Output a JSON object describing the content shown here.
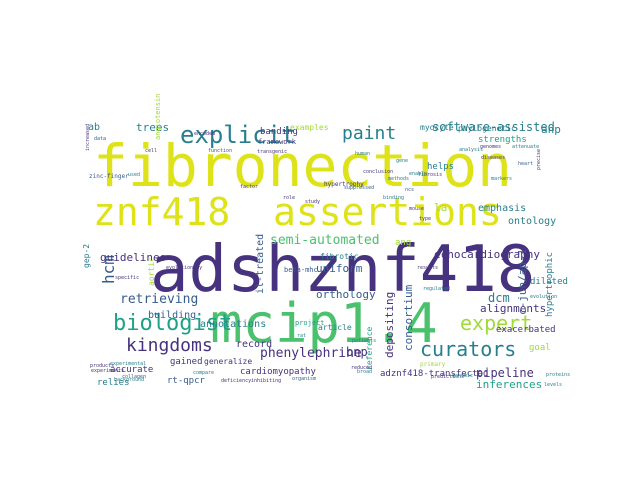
{
  "colors": {
    "background": "#ffffff",
    "purple": "#46327e",
    "darkblue": "#365c8d",
    "teal": "#277f8e",
    "green": "#1fa187",
    "lightgreen": "#4ac16d",
    "lime": "#a0da39",
    "yellow": "#dde318"
  },
  "words": [
    {
      "text": "fibronection",
      "color": "yellow"
    },
    {
      "text": "adshznf418",
      "color": "purple"
    },
    {
      "text": "mcip1.4",
      "color": "lightgreen"
    },
    {
      "text": "znf418",
      "color": "yellow"
    },
    {
      "text": "assertions",
      "color": "yellow"
    },
    {
      "text": "explicit",
      "color": "teal"
    },
    {
      "text": "paint",
      "color": "teal"
    },
    {
      "text": "biologist",
      "color": "green"
    },
    {
      "text": "kingdoms",
      "color": "purple"
    },
    {
      "text": "expert",
      "color": "lime"
    },
    {
      "text": "curators",
      "color": "teal"
    },
    {
      "text": "hcm",
      "color": "darkblue"
    },
    {
      "text": "software-assisted",
      "color": "teal"
    },
    {
      "text": "semi-automated",
      "color": "lightgreen"
    },
    {
      "text": "phenylephrine",
      "color": "purple"
    },
    {
      "text": "retrieving",
      "color": "darkblue"
    },
    {
      "text": "guidelines",
      "color": "purple"
    },
    {
      "text": "trees",
      "color": "teal"
    },
    {
      "text": "annotations",
      "color": "teal"
    },
    {
      "text": "pipeline",
      "color": "purple"
    },
    {
      "text": "inferences",
      "color": "green"
    },
    {
      "text": "bnp",
      "color": "purple"
    },
    {
      "text": "orthology",
      "color": "darkblue"
    },
    {
      "text": "depositing",
      "color": "purple"
    },
    {
      "text": "consortium",
      "color": "darkblue"
    },
    {
      "text": "c-jun/ap-1",
      "color": "darkblue"
    },
    {
      "text": "dcm",
      "color": "teal"
    },
    {
      "text": "echocardiography",
      "color": "purple"
    },
    {
      "text": "ontology",
      "color": "teal"
    },
    {
      "text": "emphasis",
      "color": "teal"
    },
    {
      "text": "alignments",
      "color": "purple"
    },
    {
      "text": "anp",
      "color": "teal"
    },
    {
      "text": "strengths",
      "color": "green"
    },
    {
      "text": "hypertrophic",
      "color": "teal"
    },
    {
      "text": "exacerbated",
      "color": "purple"
    },
    {
      "text": "dilated",
      "color": "teal"
    },
    {
      "text": "goal",
      "color": "lime"
    },
    {
      "text": "uniform",
      "color": "darkblue"
    },
    {
      "text": "beta-mhc",
      "color": "darkblue"
    },
    {
      "text": "fibrotic",
      "color": "teal"
    },
    {
      "text": "il-treated",
      "color": "darkblue"
    },
    {
      "text": "record",
      "color": "purple"
    },
    {
      "text": "building",
      "color": "darkblue"
    },
    {
      "text": "banding",
      "color": "purple"
    },
    {
      "text": "framework",
      "color": "purple"
    },
    {
      "text": "examples",
      "color": "lime"
    },
    {
      "text": "ab",
      "color": "teal"
    },
    {
      "text": "accurate",
      "color": "purple"
    },
    {
      "text": "relies",
      "color": "teal"
    },
    {
      "text": "gained",
      "color": "purple"
    },
    {
      "text": "generalize",
      "color": "purple"
    },
    {
      "text": "cardiomyopathy",
      "color": "purple"
    },
    {
      "text": "rt-qpcr",
      "color": "darkblue"
    },
    {
      "text": "adznf418-transfected",
      "color": "purple"
    },
    {
      "text": "article",
      "color": "teal"
    },
    {
      "text": "project",
      "color": "green"
    },
    {
      "text": "reference",
      "color": "green"
    },
    {
      "text": "phylogenetic",
      "color": "teal"
    },
    {
      "text": "myocyte",
      "color": "teal"
    },
    {
      "text": "ang",
      "color": "lime"
    },
    {
      "text": "helps",
      "color": "teal"
    },
    {
      "text": "gep-2",
      "color": "teal"
    },
    {
      "text": "angiotensin",
      "color": "lime"
    },
    {
      "text": "aortic",
      "color": "lime"
    },
    {
      "text": "la",
      "color": "lime"
    },
    {
      "text": "zinc-finger",
      "color": "darkblue"
    },
    {
      "text": "experimental",
      "color": "teal"
    },
    {
      "text": "specific",
      "color": "purple"
    },
    {
      "text": "patients",
      "color": "teal"
    },
    {
      "text": "evolution",
      "color": "teal"
    },
    {
      "text": "hypertrophy",
      "color": "purple"
    },
    {
      "text": "suppressed",
      "color": "darkblue"
    },
    {
      "text": "binding",
      "color": "teal"
    },
    {
      "text": "fibrosis",
      "color": "purple"
    },
    {
      "text": "genomes",
      "color": "purple"
    },
    {
      "text": "attenuate",
      "color": "teal"
    },
    {
      "text": "primary",
      "color": "lime"
    },
    {
      "text": "markers",
      "color": "teal"
    },
    {
      "text": "analysis",
      "color": "teal"
    },
    {
      "text": "mouse",
      "color": "purple"
    },
    {
      "text": "conclusion",
      "color": "purple"
    },
    {
      "text": "compare",
      "color": "teal"
    },
    {
      "text": "evolutionary",
      "color": "purple"
    },
    {
      "text": "products",
      "color": "purple"
    },
    {
      "text": "organism",
      "color": "darkblue"
    },
    {
      "text": "reduced",
      "color": "purple"
    },
    {
      "text": "deficiency",
      "color": "purple"
    },
    {
      "text": "inhibiting",
      "color": "purple"
    },
    {
      "text": "predictions",
      "color": "purple"
    },
    {
      "text": "genomic",
      "color": "teal"
    },
    {
      "text": "experiments",
      "color": "purple"
    },
    {
      "text": "background",
      "color": "teal"
    },
    {
      "text": "factor",
      "color": "purple"
    },
    {
      "text": "function",
      "color": "darkblue"
    },
    {
      "text": "transgenic",
      "color": "purple"
    },
    {
      "text": "increased",
      "color": "purple"
    },
    {
      "text": "human",
      "color": "teal"
    },
    {
      "text": "collagen",
      "color": "darkblue"
    },
    {
      "text": "proteins",
      "color": "teal"
    },
    {
      "text": "broad",
      "color": "teal"
    },
    {
      "text": "diseases",
      "color": "purple"
    },
    {
      "text": "results",
      "color": "purple"
    },
    {
      "text": "regulated",
      "color": "teal"
    },
    {
      "text": "encoded",
      "color": "purple"
    },
    {
      "text": "methods",
      "color": "teal"
    },
    {
      "text": "data",
      "color": "darkblue"
    },
    {
      "text": "used",
      "color": "teal"
    },
    {
      "text": "cell",
      "color": "purple"
    },
    {
      "text": "heart",
      "color": "darkblue"
    },
    {
      "text": "gene",
      "color": "teal"
    },
    {
      "text": "role",
      "color": "purple"
    },
    {
      "text": "ncs",
      "color": "darkblue"
    },
    {
      "text": "precise",
      "color": "purple"
    },
    {
      "text": "enable",
      "color": "teal"
    },
    {
      "text": "study",
      "color": "purple"
    },
    {
      "text": "rat",
      "color": "teal"
    },
    {
      "text": "type",
      "color": "purple"
    },
    {
      "text": "levels",
      "color": "teal"
    }
  ]
}
